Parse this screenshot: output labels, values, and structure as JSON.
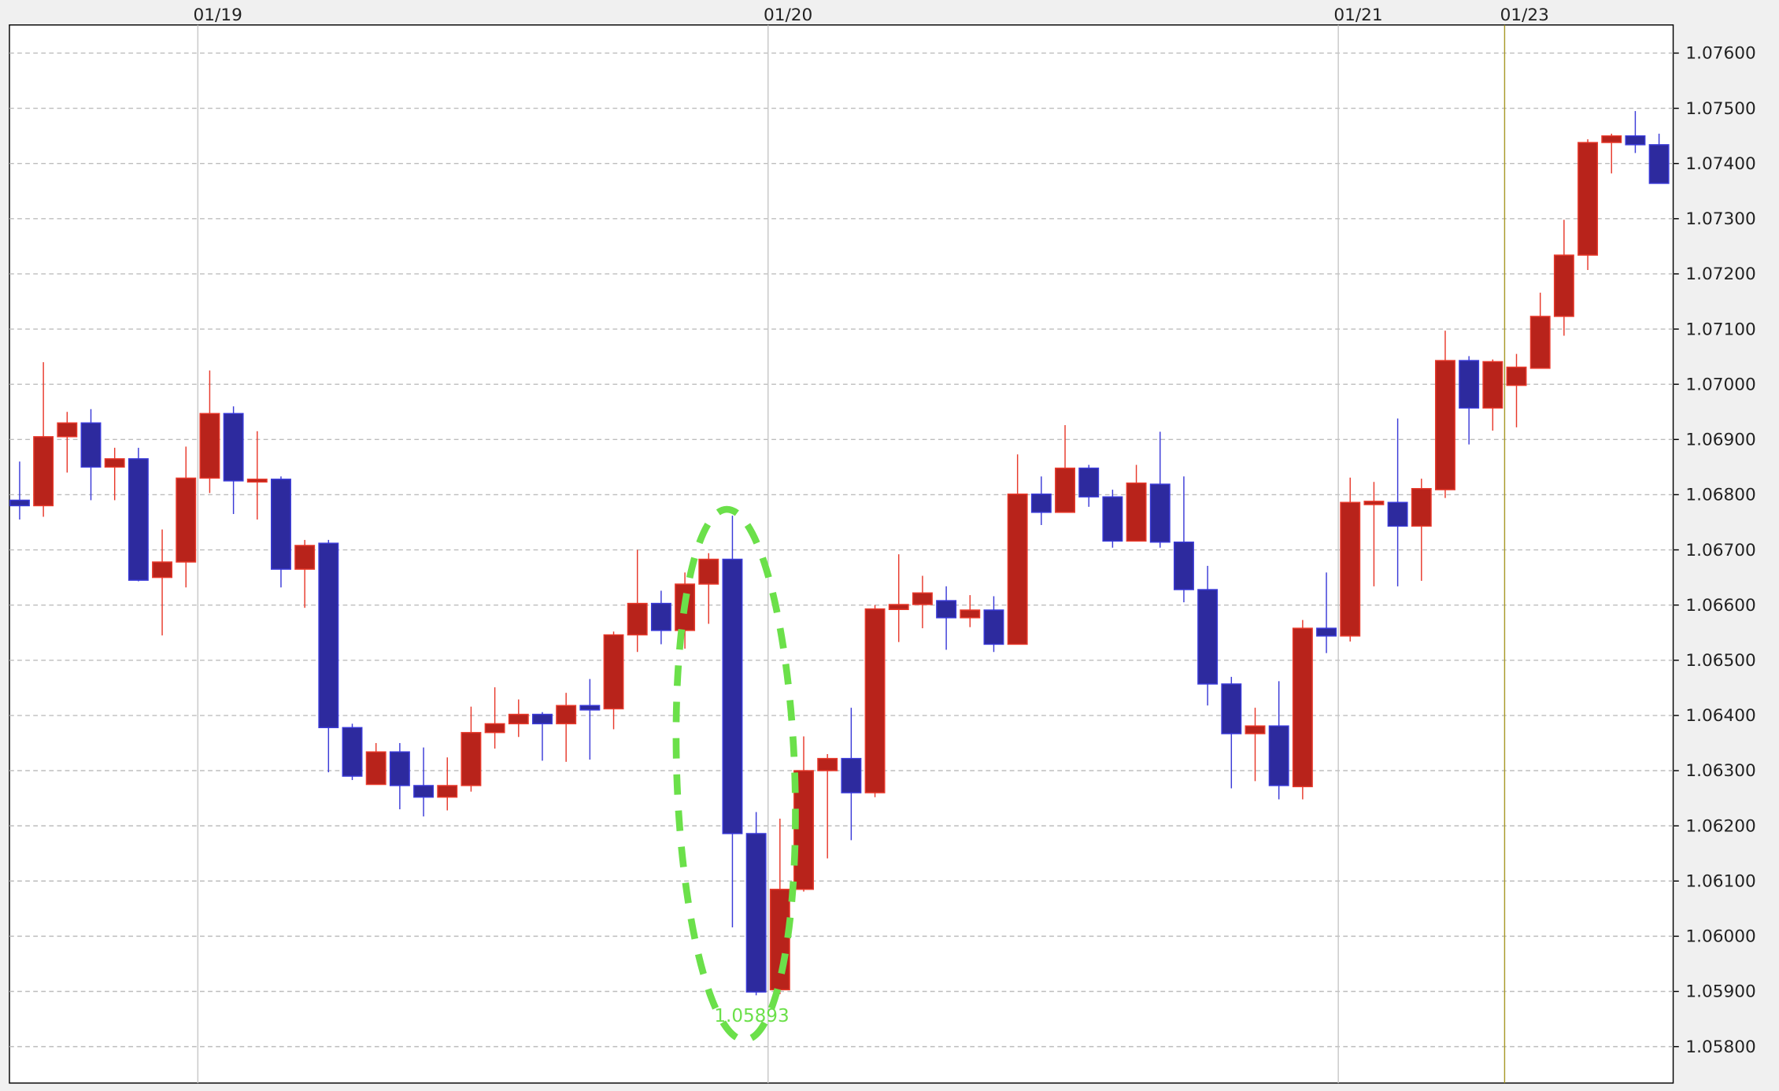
{
  "chart_data": {
    "type": "candlestick",
    "title": "",
    "xlabel": "",
    "ylabel": "",
    "ylim": [
      1.05734,
      1.07651
    ],
    "grid": true,
    "y_ticks": [
      "1.07600",
      "1.07500",
      "1.07400",
      "1.07300",
      "1.07200",
      "1.07100",
      "1.07000",
      "1.06900",
      "1.06800",
      "1.06700",
      "1.06600",
      "1.06500",
      "1.06400",
      "1.06300",
      "1.06200",
      "1.06100",
      "1.06000",
      "1.05900",
      "1.05800"
    ],
    "date_markers": [
      {
        "label": "01/19",
        "before_candle": 8,
        "highlight": false
      },
      {
        "label": "01/20",
        "before_candle": 32,
        "highlight": false
      },
      {
        "label": "01/21",
        "before_candle": 56,
        "highlight": false
      },
      {
        "label": "01/23",
        "before_candle": 63,
        "highlight": true
      }
    ],
    "ohlc_fields": [
      "open",
      "high",
      "low",
      "close"
    ],
    "candles": [
      [
        1.0679,
        1.0686,
        1.06755,
        1.0678
      ],
      [
        1.0678,
        1.0704,
        1.0676,
        1.06905
      ],
      [
        1.06905,
        1.0695,
        1.0684,
        1.0693
      ],
      [
        1.0693,
        1.06955,
        1.0679,
        1.0685
      ],
      [
        1.0685,
        1.06885,
        1.0679,
        1.06865
      ],
      [
        1.06865,
        1.06885,
        1.06643,
        1.06645
      ],
      [
        1.0665,
        1.06737,
        1.06545,
        1.06678
      ],
      [
        1.06678,
        1.06887,
        1.06632,
        1.0683
      ],
      [
        1.0683,
        1.07025,
        1.06803,
        1.06947
      ],
      [
        1.06947,
        1.0696,
        1.06765,
        1.06825
      ],
      [
        1.06823,
        1.06915,
        1.06755,
        1.06828
      ],
      [
        1.06828,
        1.06833,
        1.06632,
        1.06665
      ],
      [
        1.06665,
        1.06718,
        1.06595,
        1.06708
      ],
      [
        1.06712,
        1.06718,
        1.06297,
        1.06378
      ],
      [
        1.06378,
        1.06385,
        1.06283,
        1.0629
      ],
      [
        1.06275,
        1.0635,
        1.06275,
        1.06334
      ],
      [
        1.06334,
        1.0635,
        1.0623,
        1.06273
      ],
      [
        1.06273,
        1.06342,
        1.06217,
        1.06252
      ],
      [
        1.06252,
        1.06324,
        1.06228,
        1.06273
      ],
      [
        1.06273,
        1.06416,
        1.06262,
        1.06369
      ],
      [
        1.06369,
        1.06451,
        1.0634,
        1.06385
      ],
      [
        1.06385,
        1.06429,
        1.06361,
        1.06402
      ],
      [
        1.06402,
        1.06406,
        1.06318,
        1.06385
      ],
      [
        1.06385,
        1.06441,
        1.06316,
        1.06418
      ],
      [
        1.06418,
        1.06466,
        1.0632,
        1.0641
      ],
      [
        1.06412,
        1.06552,
        1.06375,
        1.06546
      ],
      [
        1.06546,
        1.067,
        1.06515,
        1.06603
      ],
      [
        1.06603,
        1.06626,
        1.06529,
        1.06554
      ],
      [
        1.06554,
        1.06659,
        1.06521,
        1.06638
      ],
      [
        1.06638,
        1.06694,
        1.06566,
        1.06683
      ],
      [
        1.06683,
        1.06762,
        1.06016,
        1.06186
      ],
      [
        1.06186,
        1.06225,
        1.05893,
        1.05899
      ],
      [
        1.05903,
        1.06213,
        1.05895,
        1.06085
      ],
      [
        1.06085,
        1.06362,
        1.06081,
        1.063
      ],
      [
        1.063,
        1.0633,
        1.06141,
        1.06322
      ],
      [
        1.06322,
        1.06414,
        1.06174,
        1.0626
      ],
      [
        1.0626,
        1.066,
        1.06252,
        1.06593
      ],
      [
        1.06592,
        1.06692,
        1.06533,
        1.06601
      ],
      [
        1.06601,
        1.06653,
        1.06558,
        1.06622
      ],
      [
        1.06608,
        1.06634,
        1.06519,
        1.06577
      ],
      [
        1.06577,
        1.06618,
        1.0656,
        1.06591
      ],
      [
        1.06591,
        1.06616,
        1.06515,
        1.06529
      ],
      [
        1.06529,
        1.06873,
        1.06529,
        1.06801
      ],
      [
        1.06801,
        1.06833,
        1.06745,
        1.06768
      ],
      [
        1.06768,
        1.06926,
        1.06768,
        1.06848
      ],
      [
        1.06848,
        1.06854,
        1.06778,
        1.06796
      ],
      [
        1.06796,
        1.06809,
        1.06704,
        1.06716
      ],
      [
        1.06716,
        1.06854,
        1.06716,
        1.06821
      ],
      [
        1.06819,
        1.06914,
        1.06704,
        1.06714
      ],
      [
        1.06714,
        1.06833,
        1.06605,
        1.06628
      ],
      [
        1.06628,
        1.06671,
        1.06418,
        1.06457
      ],
      [
        1.06457,
        1.0647,
        1.06268,
        1.06367
      ],
      [
        1.06367,
        1.06414,
        1.06281,
        1.06381
      ],
      [
        1.06381,
        1.06462,
        1.06248,
        1.06273
      ],
      [
        1.06271,
        1.06573,
        1.06248,
        1.06558
      ],
      [
        1.06558,
        1.06659,
        1.06513,
        1.06544
      ],
      [
        1.06544,
        1.06831,
        1.06534,
        1.06786
      ],
      [
        1.06782,
        1.06823,
        1.06634,
        1.06788
      ],
      [
        1.06786,
        1.06938,
        1.06634,
        1.06743
      ],
      [
        1.06743,
        1.06829,
        1.06644,
        1.06811
      ],
      [
        1.06809,
        1.07097,
        1.06794,
        1.07043
      ],
      [
        1.07043,
        1.07051,
        1.06891,
        1.06957
      ],
      [
        1.06957,
        1.07045,
        1.06916,
        1.07041
      ],
      [
        1.06998,
        1.07055,
        1.06922,
        1.07031
      ],
      [
        1.07029,
        1.07166,
        1.07029,
        1.07123
      ],
      [
        1.07123,
        1.07298,
        1.07088,
        1.07234
      ],
      [
        1.07234,
        1.07444,
        1.07207,
        1.07438
      ],
      [
        1.07438,
        1.07454,
        1.07382,
        1.0745
      ],
      [
        1.0745,
        1.07495,
        1.07419,
        1.07434
      ],
      [
        1.07434,
        1.07454,
        1.07364,
        1.07364
      ]
    ],
    "annotation": {
      "label": "1.05893",
      "shape": "dashed-ellipse",
      "around_candles": [
        30,
        32
      ],
      "color": "#6be04a"
    },
    "colors": {
      "up_body": "#b8231b",
      "up_edge": "#e8392b",
      "down_body": "#2d2a9e",
      "down_edge": "#3a3ad8",
      "grid": "#bdbdbd",
      "date_line": "#c8c8c8",
      "date_line_highlight": "#a89a2a"
    }
  }
}
